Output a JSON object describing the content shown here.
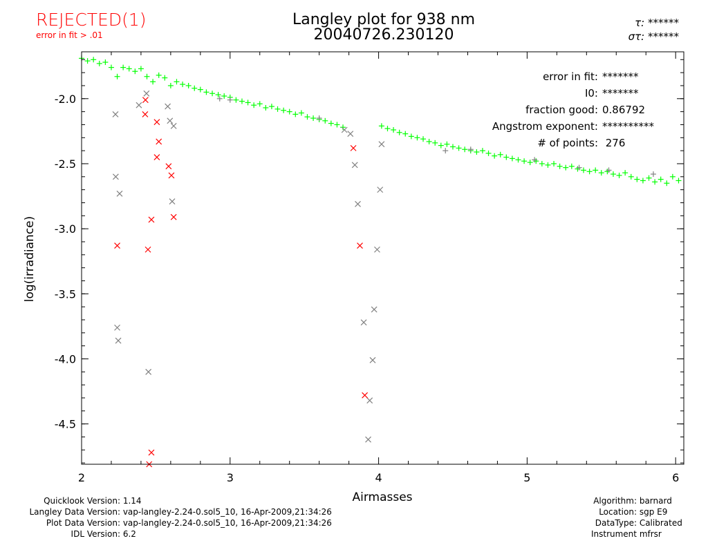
{
  "status": {
    "label": "REJECTED(1)",
    "reason": "error in fit > .01"
  },
  "chart_data": {
    "type": "scatter",
    "title": "Langley plot for 938 nm",
    "subtitle": "20040726.230120",
    "xlabel": "Airmasses",
    "ylabel": "log(irradiance)",
    "xlim": [
      2.0,
      6.055
    ],
    "ylim": [
      -4.81,
      -1.64
    ],
    "xticks": [
      "2",
      "3",
      "4",
      "5",
      "6"
    ],
    "xtick_values": [
      2,
      3,
      4,
      5,
      6
    ],
    "yticks": [
      "-2.0",
      "-2.5",
      "-3.0",
      "-3.5",
      "-4.0",
      "-4.5"
    ],
    "ytick_values": [
      -2.0,
      -2.5,
      -3.0,
      -3.5,
      -4.0,
      -4.5
    ],
    "colors": {
      "good": "#00ff00",
      "rejected": "#ff0000",
      "excluded": "#808080"
    },
    "series": [
      {
        "name": "good points",
        "marker": "+",
        "color": "#00ff00",
        "points": [
          [
            2.0,
            -1.69
          ],
          [
            2.04,
            -1.71
          ],
          [
            2.08,
            -1.7
          ],
          [
            2.12,
            -1.73
          ],
          [
            2.16,
            -1.72
          ],
          [
            2.2,
            -1.76
          ],
          [
            2.24,
            -1.83
          ],
          [
            2.28,
            -1.76
          ],
          [
            2.32,
            -1.77
          ],
          [
            2.36,
            -1.79
          ],
          [
            2.4,
            -1.77
          ],
          [
            2.44,
            -1.83
          ],
          [
            2.48,
            -1.87
          ],
          [
            2.52,
            -1.82
          ],
          [
            2.56,
            -1.84
          ],
          [
            2.6,
            -1.9
          ],
          [
            2.64,
            -1.87
          ],
          [
            2.68,
            -1.89
          ],
          [
            2.72,
            -1.9
          ],
          [
            2.76,
            -1.92
          ],
          [
            2.8,
            -1.93
          ],
          [
            2.84,
            -1.95
          ],
          [
            2.88,
            -1.96
          ],
          [
            2.92,
            -1.97
          ],
          [
            2.96,
            -1.98
          ],
          [
            3.0,
            -1.99
          ],
          [
            3.04,
            -2.01
          ],
          [
            3.08,
            -2.02
          ],
          [
            3.12,
            -2.03
          ],
          [
            3.16,
            -2.05
          ],
          [
            3.2,
            -2.04
          ],
          [
            3.24,
            -2.07
          ],
          [
            3.28,
            -2.06
          ],
          [
            3.32,
            -2.08
          ],
          [
            3.36,
            -2.09
          ],
          [
            3.4,
            -2.1
          ],
          [
            3.44,
            -2.12
          ],
          [
            3.48,
            -2.11
          ],
          [
            3.52,
            -2.14
          ],
          [
            3.56,
            -2.15
          ],
          [
            3.6,
            -2.16
          ],
          [
            3.64,
            -2.17
          ],
          [
            3.68,
            -2.19
          ],
          [
            3.72,
            -2.2
          ],
          [
            3.76,
            -2.22
          ],
          [
            4.02,
            -2.21
          ],
          [
            4.06,
            -2.23
          ],
          [
            4.1,
            -2.24
          ],
          [
            4.14,
            -2.26
          ],
          [
            4.18,
            -2.27
          ],
          [
            4.22,
            -2.29
          ],
          [
            4.26,
            -2.3
          ],
          [
            4.3,
            -2.31
          ],
          [
            4.34,
            -2.33
          ],
          [
            4.38,
            -2.34
          ],
          [
            4.42,
            -2.36
          ],
          [
            4.46,
            -2.35
          ],
          [
            4.5,
            -2.37
          ],
          [
            4.54,
            -2.38
          ],
          [
            4.58,
            -2.39
          ],
          [
            4.62,
            -2.4
          ],
          [
            4.66,
            -2.41
          ],
          [
            4.7,
            -2.4
          ],
          [
            4.74,
            -2.42
          ],
          [
            4.78,
            -2.44
          ],
          [
            4.82,
            -2.43
          ],
          [
            4.86,
            -2.45
          ],
          [
            4.9,
            -2.46
          ],
          [
            4.94,
            -2.47
          ],
          [
            4.98,
            -2.48
          ],
          [
            5.02,
            -2.49
          ],
          [
            5.06,
            -2.48
          ],
          [
            5.1,
            -2.5
          ],
          [
            5.14,
            -2.51
          ],
          [
            5.18,
            -2.5
          ],
          [
            5.22,
            -2.52
          ],
          [
            5.26,
            -2.53
          ],
          [
            5.3,
            -2.52
          ],
          [
            5.34,
            -2.54
          ],
          [
            5.38,
            -2.55
          ],
          [
            5.42,
            -2.56
          ],
          [
            5.46,
            -2.55
          ],
          [
            5.5,
            -2.57
          ],
          [
            5.54,
            -2.56
          ],
          [
            5.58,
            -2.58
          ],
          [
            5.62,
            -2.59
          ],
          [
            5.66,
            -2.57
          ],
          [
            5.7,
            -2.6
          ],
          [
            5.74,
            -2.62
          ],
          [
            5.78,
            -2.63
          ],
          [
            5.82,
            -2.61
          ],
          [
            5.86,
            -2.64
          ],
          [
            5.9,
            -2.62
          ],
          [
            5.94,
            -2.65
          ],
          [
            5.98,
            -2.6
          ],
          [
            6.02,
            -2.63
          ]
        ]
      },
      {
        "name": "excluded plus",
        "marker": "+",
        "color": "#808080",
        "points": [
          [
            2.93,
            -2.0
          ],
          [
            3.0,
            -2.01
          ],
          [
            3.6,
            -2.15
          ],
          [
            4.45,
            -2.4
          ],
          [
            4.62,
            -2.39
          ],
          [
            5.05,
            -2.47
          ],
          [
            5.35,
            -2.53
          ],
          [
            5.55,
            -2.55
          ],
          [
            5.85,
            -2.58
          ]
        ]
      },
      {
        "name": "excluded x",
        "marker": "x",
        "color": "#808080",
        "points": [
          [
            2.228,
            -2.12
          ],
          [
            2.23,
            -2.6
          ],
          [
            2.256,
            -2.73
          ],
          [
            2.24,
            -3.76
          ],
          [
            2.247,
            -3.86
          ],
          [
            2.386,
            -2.05
          ],
          [
            2.437,
            -1.96
          ],
          [
            2.45,
            -4.1
          ],
          [
            2.58,
            -2.06
          ],
          [
            2.595,
            -2.17
          ],
          [
            2.62,
            -2.21
          ],
          [
            2.61,
            -2.79
          ],
          [
            3.77,
            -2.24
          ],
          [
            3.81,
            -2.27
          ],
          [
            3.84,
            -2.51
          ],
          [
            3.86,
            -2.81
          ],
          [
            4.02,
            -2.35
          ],
          [
            4.01,
            -2.7
          ],
          [
            3.99,
            -3.16
          ],
          [
            3.97,
            -3.62
          ],
          [
            3.9,
            -3.72
          ],
          [
            3.96,
            -4.01
          ],
          [
            3.94,
            -4.32
          ],
          [
            3.93,
            -4.62
          ]
        ]
      },
      {
        "name": "rejected x",
        "marker": "x",
        "color": "#ff0000",
        "points": [
          [
            2.24,
            -3.13
          ],
          [
            2.43,
            -2.01
          ],
          [
            2.428,
            -2.12
          ],
          [
            2.447,
            -3.16
          ],
          [
            2.47,
            -4.72
          ],
          [
            2.455,
            -4.81
          ],
          [
            2.47,
            -2.93
          ],
          [
            2.507,
            -2.18
          ],
          [
            2.52,
            -2.33
          ],
          [
            2.507,
            -2.45
          ],
          [
            2.586,
            -2.52
          ],
          [
            2.605,
            -2.59
          ],
          [
            2.62,
            -2.91
          ],
          [
            3.83,
            -2.38
          ],
          [
            3.874,
            -3.13
          ],
          [
            3.907,
            -4.28
          ]
        ]
      }
    ]
  },
  "header": {
    "tau_label": "τ:",
    "tau_value": "******",
    "sigma_label": "στ:",
    "sigma_value": "******"
  },
  "stats": [
    {
      "label": "error in fit:",
      "value": "*******"
    },
    {
      "label": "I0:",
      "value": "*******"
    },
    {
      "label": "fraction good:",
      "value": "0.86792"
    },
    {
      "label": "Angstrom exponent:",
      "value": "**********"
    },
    {
      "label": "# of points:",
      "value": " 276"
    }
  ],
  "footer_left": [
    {
      "label": "Quicklook Version:",
      "value": "1.14"
    },
    {
      "label": "Langley Data Version:",
      "value": "vap-langley-2.24-0.sol5_10, 16-Apr-2009,21:34:26"
    },
    {
      "label": "Plot Data Version:",
      "value": "vap-langley-2.24-0.sol5_10, 16-Apr-2009,21:34:26"
    },
    {
      "label": "IDL Version:",
      "value": "6.2"
    }
  ],
  "footer_right": [
    {
      "label": "Algorithm:",
      "value": "barnard"
    },
    {
      "label": "Location:",
      "value": "sgp E9"
    },
    {
      "label": "DataType:",
      "value": "Calibrated"
    },
    {
      "label": "Instrument",
      "value": "mfrsr"
    }
  ]
}
